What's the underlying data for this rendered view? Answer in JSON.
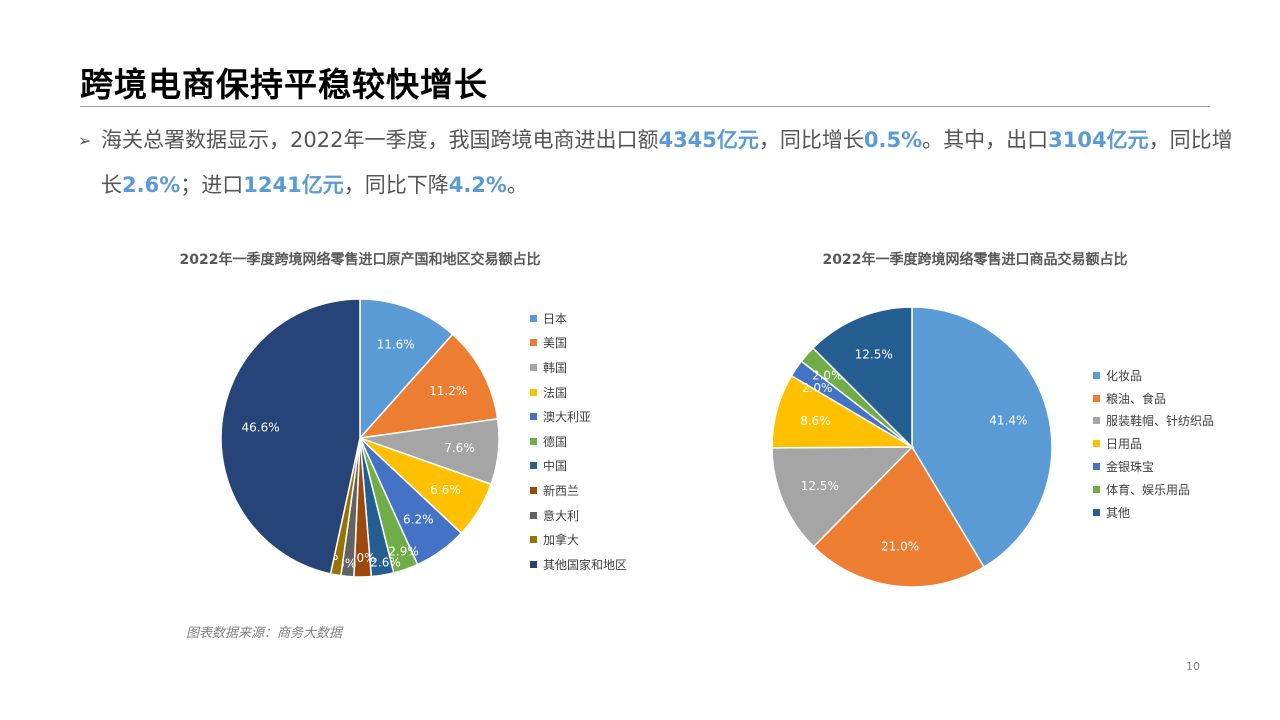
{
  "slide": {
    "title": "跨境电商保持平稳较快增长",
    "bullet_symbol": "➢",
    "bullet_segments": [
      {
        "text": "海关总署数据显示，2022年一季度，我国跨境电商进出口额",
        "hl": false
      },
      {
        "text": "4345亿元",
        "hl": true
      },
      {
        "text": "，同比增长",
        "hl": false
      },
      {
        "text": "0.5%",
        "hl": true
      },
      {
        "text": "。其中，出口",
        "hl": false
      },
      {
        "text": "3104亿元",
        "hl": true
      },
      {
        "text": "，同比增长",
        "hl": false
      },
      {
        "text": "2.6%",
        "hl": true
      },
      {
        "text": "；进口",
        "hl": false
      },
      {
        "text": "1241亿元",
        "hl": true
      },
      {
        "text": "，同比下降",
        "hl": false
      },
      {
        "text": "4.2%",
        "hl": true
      },
      {
        "text": "。",
        "hl": false
      }
    ],
    "source_note": "图表数据来源：商务大数据",
    "page_number": "10"
  },
  "chart_data": [
    {
      "type": "pie",
      "title": "2022年一季度跨境网络零售进口原产国和地区交易额占比",
      "legend_position": "right",
      "slices": [
        {
          "label": "日本",
          "value": 11.6,
          "display": "11.6%",
          "color": "#5b9bd5"
        },
        {
          "label": "美国",
          "value": 11.2,
          "display": "11.2%",
          "color": "#ed7d31"
        },
        {
          "label": "韩国",
          "value": 7.6,
          "display": "7.6%",
          "color": "#a5a5a5"
        },
        {
          "label": "法国",
          "value": 6.6,
          "display": "6.6%",
          "color": "#ffc000"
        },
        {
          "label": "澳大利亚",
          "value": 6.2,
          "display": "6.2%",
          "color": "#4472c4"
        },
        {
          "label": "德国",
          "value": 2.9,
          "display": "2.9%",
          "color": "#70ad47"
        },
        {
          "label": "中国",
          "value": 2.6,
          "display": "2.6%",
          "color": "#255e91"
        },
        {
          "label": "新西兰",
          "value": 2.0,
          "display": "2.0%",
          "color": "#9e480e"
        },
        {
          "label": "意大利",
          "value": 1.5,
          "display": "1.5%",
          "color": "#636363"
        },
        {
          "label": "加拿大",
          "value": 1.2,
          "display": "1.2%",
          "color": "#997300"
        },
        {
          "label": "其他国家和地区",
          "value": 46.6,
          "display": "46.6%",
          "color": "#264478"
        }
      ]
    },
    {
      "type": "pie",
      "title": "2022年一季度跨境网络零售进口商品交易额占比",
      "legend_position": "right",
      "slices": [
        {
          "label": "化妆品",
          "value": 41.4,
          "display": "41.4%",
          "color": "#5b9bd5"
        },
        {
          "label": "粮油、食品",
          "value": 21.0,
          "display": "21.0%",
          "color": "#ed7d31"
        },
        {
          "label": "服装鞋帽、针纺织品",
          "value": 12.5,
          "display": "12.5%",
          "color": "#a5a5a5"
        },
        {
          "label": "日用品",
          "value": 8.6,
          "display": "8.6%",
          "color": "#ffc000"
        },
        {
          "label": "金银珠宝",
          "value": 2.0,
          "display": "2.0%",
          "color": "#4472c4"
        },
        {
          "label": "体育、娱乐用品",
          "value": 2.0,
          "display": "2.0%",
          "color": "#70ad47"
        },
        {
          "label": "其他",
          "value": 12.5,
          "display": "12.5%",
          "color": "#255e91"
        }
      ]
    }
  ]
}
